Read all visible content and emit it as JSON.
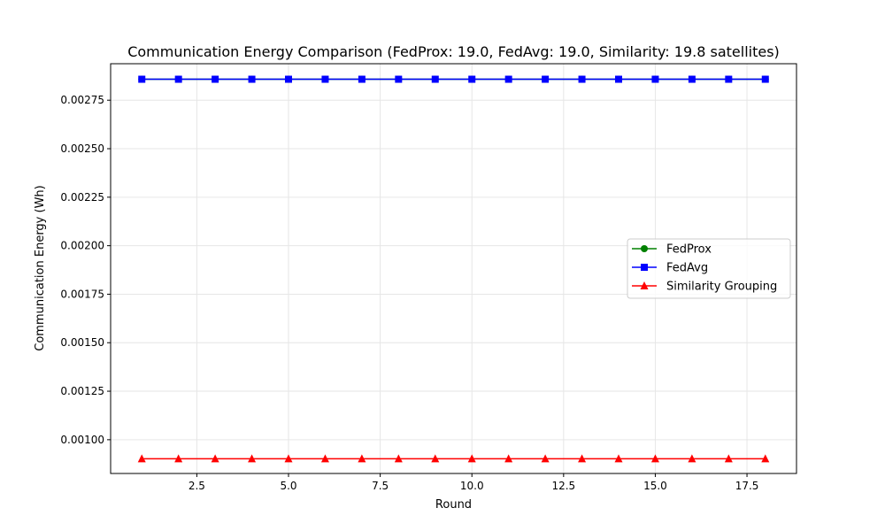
{
  "chart_data": {
    "type": "line",
    "title": "Communication Energy Comparison (FedProx: 19.0, FedAvg: 19.0, Similarity: 19.8 satellites)",
    "xlabel": "Round",
    "ylabel": "Communication Energy (Wh)",
    "x": [
      1,
      2,
      3,
      4,
      5,
      6,
      7,
      8,
      9,
      10,
      11,
      12,
      13,
      14,
      15,
      16,
      17,
      18
    ],
    "xlim": [
      0.15,
      18.85
    ],
    "ylim": [
      0.000826,
      0.002938
    ],
    "xticks": [
      2.5,
      5.0,
      7.5,
      10.0,
      12.5,
      15.0,
      17.5
    ],
    "xtick_labels": [
      "2.5",
      "5.0",
      "7.5",
      "10.0",
      "12.5",
      "15.0",
      "17.5"
    ],
    "yticks": [
      0.001,
      0.00125,
      0.0015,
      0.00175,
      0.002,
      0.00225,
      0.0025,
      0.00275
    ],
    "ytick_labels": [
      "0.00100",
      "0.00125",
      "0.00150",
      "0.00175",
      "0.00200",
      "0.00225",
      "0.00250",
      "0.00275"
    ],
    "grid": true,
    "legend_position": "center-right",
    "series": [
      {
        "name": "FedProx",
        "color": "#008000",
        "marker": "circle",
        "values": [
          0.002858,
          0.002858,
          0.002858,
          0.002858,
          0.002858,
          0.002858,
          0.002858,
          0.002858,
          0.002858,
          0.002858,
          0.002858,
          0.002858,
          0.002858,
          0.002858,
          0.002858,
          0.002858,
          0.002858,
          0.002858
        ]
      },
      {
        "name": "FedAvg",
        "color": "#0000ff",
        "marker": "square",
        "values": [
          0.002858,
          0.002858,
          0.002858,
          0.002858,
          0.002858,
          0.002858,
          0.002858,
          0.002858,
          0.002858,
          0.002858,
          0.002858,
          0.002858,
          0.002858,
          0.002858,
          0.002858,
          0.002858,
          0.002858,
          0.002858
        ]
      },
      {
        "name": "Similarity Grouping",
        "color": "#ff0000",
        "marker": "triangle",
        "values": [
          0.000902,
          0.000902,
          0.000902,
          0.000902,
          0.000902,
          0.000902,
          0.000902,
          0.000902,
          0.000902,
          0.000902,
          0.000902,
          0.000902,
          0.000902,
          0.000902,
          0.000902,
          0.000902,
          0.000902,
          0.000902
        ]
      }
    ]
  }
}
